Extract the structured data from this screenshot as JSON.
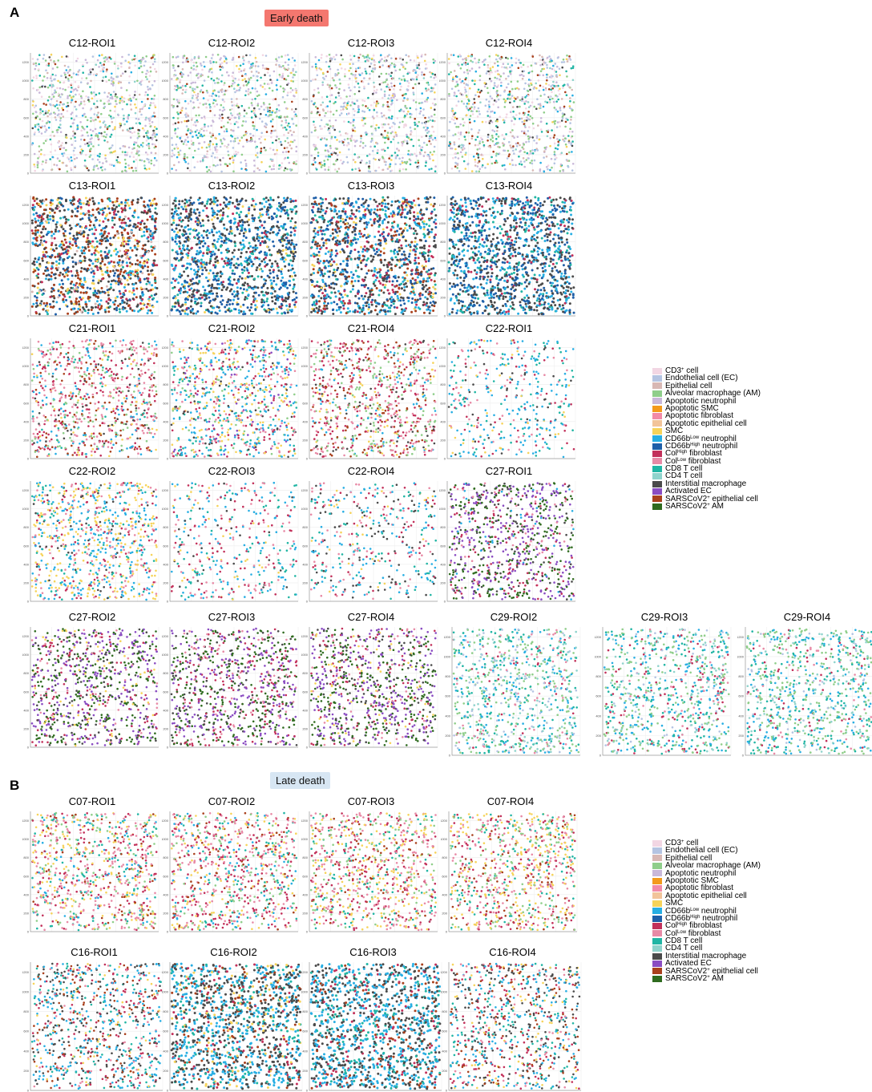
{
  "panel_a": {
    "letter": "A",
    "badge": "Early death"
  },
  "panel_b": {
    "letter": "B",
    "badge": "Late death"
  },
  "legend_items": [
    {
      "html": "CD3<sup>+</sup> cell",
      "color": "#f2d6e3"
    },
    {
      "html": "Endothelial cell (EC)",
      "color": "#b4c4e2"
    },
    {
      "html": "Epithelial cell",
      "color": "#d8b8b4"
    },
    {
      "html": "Alveolar macrophage (AM)",
      "color": "#8fce8a"
    },
    {
      "html": "Apoptotic neutrophil",
      "color": "#c9b8d9"
    },
    {
      "html": "Apoptotic SMC",
      "color": "#f39a1c"
    },
    {
      "html": "Apoptotic fibroblast",
      "color": "#f28aa8"
    },
    {
      "html": "Apoptotic epithelial cell",
      "color": "#f2c49a"
    },
    {
      "html": "SMC",
      "color": "#f6d35a"
    },
    {
      "html": "CD66b<sup>Low</sup> neutrophil",
      "color": "#27aee3"
    },
    {
      "html": "CD66b<sup>High</sup> neutrophil",
      "color": "#1f5fa8"
    },
    {
      "html": "Col<sup>High</sup> fibroblast",
      "color": "#c2305a"
    },
    {
      "html": "Col<sup>Low</sup> fibroblast",
      "color": "#e88aa6"
    },
    {
      "html": "CD8 T cell",
      "color": "#21b5a4"
    },
    {
      "html": "CD4 T cell",
      "color": "#8fd3cc"
    },
    {
      "html": "Interstitial macrophage",
      "color": "#4a4a4a"
    },
    {
      "html": "Activated EC",
      "color": "#8a4cc2"
    },
    {
      "html": "SARSCoV2<sup>+</sup> epithelial cell",
      "color": "#a9401c"
    },
    {
      "html": "SARSCoV2<sup>+</sup> AM",
      "color": "#2f6b1f"
    }
  ],
  "y_ticks": [
    "0",
    "200",
    "400",
    "600",
    "800",
    "1000",
    "1200"
  ],
  "chart_data": {
    "type": "scatter",
    "note_units": "cell centroid coordinates (y axis 0 to 1200+)",
    "ylim": [
      0,
      1300
    ],
    "panels": [
      {
        "title": "C12-ROI1",
        "group": "Early death",
        "mix": {
          "0": 3,
          "1": 4,
          "2": 2,
          "3": 4,
          "4": 4,
          "8": 1,
          "9": 1,
          "13": 2,
          "14": 1,
          "17": 1,
          "15": 1
        }
      },
      {
        "title": "C12-ROI2",
        "group": "Early death",
        "mix": {
          "0": 3,
          "1": 4,
          "2": 2,
          "3": 4,
          "4": 4,
          "8": 1,
          "9": 1,
          "13": 2,
          "14": 1,
          "17": 1,
          "15": 1
        }
      },
      {
        "title": "C12-ROI3",
        "group": "Early death",
        "mix": {
          "0": 3,
          "1": 4,
          "2": 2,
          "3": 4,
          "4": 4,
          "8": 1,
          "9": 1,
          "13": 2,
          "14": 1,
          "17": 1,
          "15": 1
        }
      },
      {
        "title": "C12-ROI4",
        "group": "Early death",
        "mix": {
          "0": 3,
          "1": 4,
          "2": 2,
          "3": 4,
          "4": 4,
          "8": 1,
          "9": 1,
          "13": 2,
          "14": 1,
          "17": 1,
          "15": 1
        }
      },
      {
        "title": "C13-ROI1",
        "group": "Early death",
        "mix": {
          "15": 6,
          "17": 5,
          "10": 3,
          "9": 3,
          "11": 2,
          "8": 2,
          "13": 1,
          "2": 1
        }
      },
      {
        "title": "C13-ROI2",
        "group": "Early death",
        "mix": {
          "15": 6,
          "10": 5,
          "9": 4,
          "13": 2,
          "11": 1,
          "8": 1
        }
      },
      {
        "title": "C13-ROI3",
        "group": "Early death",
        "mix": {
          "15": 5,
          "10": 4,
          "9": 3,
          "11": 2,
          "17": 2,
          "8": 1,
          "13": 1
        }
      },
      {
        "title": "C13-ROI4",
        "group": "Early death",
        "mix": {
          "15": 6,
          "10": 5,
          "9": 4,
          "13": 2,
          "11": 1
        }
      },
      {
        "title": "C21-ROI1",
        "group": "Early death",
        "mix": {
          "11": 4,
          "12": 4,
          "3": 2,
          "9": 2,
          "17": 2,
          "15": 1,
          "8": 1,
          "13": 1
        }
      },
      {
        "title": "C21-ROI2",
        "group": "Early death",
        "mix": {
          "9": 4,
          "8": 3,
          "11": 2,
          "12": 2,
          "13": 2,
          "15": 1,
          "3": 1,
          "16": 1
        }
      },
      {
        "title": "C21-ROI4",
        "group": "Early death",
        "mix": {
          "11": 3,
          "12": 3,
          "3": 3,
          "17": 2,
          "8": 1,
          "9": 1,
          "15": 1
        }
      },
      {
        "title": "C22-ROI1",
        "group": "Early death",
        "mix": {
          "9": 5,
          "13": 3,
          "11": 2,
          "12": 2,
          "15": 1,
          "8": 1
        }
      },
      {
        "title": "C22-ROI2",
        "group": "Early death",
        "mix": {
          "9": 4,
          "8": 4,
          "11": 2,
          "12": 2,
          "13": 2,
          "15": 1
        }
      },
      {
        "title": "C22-ROI3",
        "group": "Early death",
        "mix": {
          "9": 4,
          "11": 3,
          "12": 3,
          "13": 2,
          "15": 1,
          "8": 1
        }
      },
      {
        "title": "C22-ROI4",
        "group": "Early death",
        "mix": {
          "9": 3,
          "15": 3,
          "11": 2,
          "12": 2,
          "13": 2,
          "8": 1
        }
      },
      {
        "title": "C27-ROI1",
        "group": "Early death",
        "mix": {
          "16": 6,
          "18": 5,
          "11": 2,
          "15": 2,
          "12": 1,
          "9": 1
        }
      },
      {
        "title": "C27-ROI2",
        "group": "Early death",
        "mix": {
          "16": 6,
          "18": 5,
          "11": 2,
          "15": 2,
          "12": 1,
          "8": 1
        }
      },
      {
        "title": "C27-ROI3",
        "group": "Early death",
        "mix": {
          "16": 5,
          "18": 5,
          "11": 3,
          "12": 2,
          "15": 2
        }
      },
      {
        "title": "C27-ROI4",
        "group": "Early death",
        "mix": {
          "16": 5,
          "18": 5,
          "11": 2,
          "15": 2,
          "12": 1,
          "8": 1
        }
      },
      {
        "title": "C29-ROI2",
        "group": "Early death",
        "mix": {
          "3": 4,
          "13": 3,
          "9": 3,
          "14": 2,
          "1": 2,
          "11": 1,
          "12": 1
        }
      },
      {
        "title": "C29-ROI3",
        "group": "Early death",
        "mix": {
          "3": 4,
          "13": 3,
          "9": 3,
          "14": 2,
          "11": 2,
          "12": 1,
          "1": 1
        }
      },
      {
        "title": "C29-ROI4",
        "group": "Early death",
        "mix": {
          "3": 4,
          "13": 3,
          "9": 3,
          "14": 2,
          "11": 1,
          "12": 1,
          "1": 1
        }
      },
      {
        "title": "C07-ROI1",
        "group": "Late death",
        "mix": {
          "12": 4,
          "11": 3,
          "8": 3,
          "13": 2,
          "3": 2,
          "17": 1,
          "9": 1
        }
      },
      {
        "title": "C07-ROI2",
        "group": "Late death",
        "mix": {
          "12": 4,
          "11": 4,
          "8": 2,
          "13": 2,
          "3": 2,
          "17": 1,
          "9": 1
        }
      },
      {
        "title": "C07-ROI3",
        "group": "Late death",
        "mix": {
          "12": 4,
          "11": 3,
          "8": 3,
          "13": 2,
          "3": 2,
          "17": 1
        }
      },
      {
        "title": "C07-ROI4",
        "group": "Late death",
        "mix": {
          "12": 3,
          "11": 2,
          "8": 3,
          "13": 2,
          "3": 2,
          "17": 1
        }
      },
      {
        "title": "C16-ROI1",
        "group": "Late death",
        "mix": {
          "9": 4,
          "15": 4,
          "13": 2,
          "11": 2,
          "17": 2,
          "8": 1,
          "12": 1
        }
      },
      {
        "title": "C16-ROI2",
        "group": "Late death",
        "mix": {
          "15": 5,
          "9": 5,
          "13": 2,
          "11": 1,
          "17": 1,
          "8": 1
        }
      },
      {
        "title": "C16-ROI3",
        "group": "Late death",
        "mix": {
          "9": 6,
          "15": 5,
          "13": 2,
          "11": 1,
          "17": 1
        }
      },
      {
        "title": "C16-ROI4",
        "group": "Late death",
        "mix": {
          "15": 3,
          "9": 3,
          "13": 2,
          "11": 2,
          "17": 2,
          "12": 1,
          "8": 1
        }
      }
    ]
  }
}
